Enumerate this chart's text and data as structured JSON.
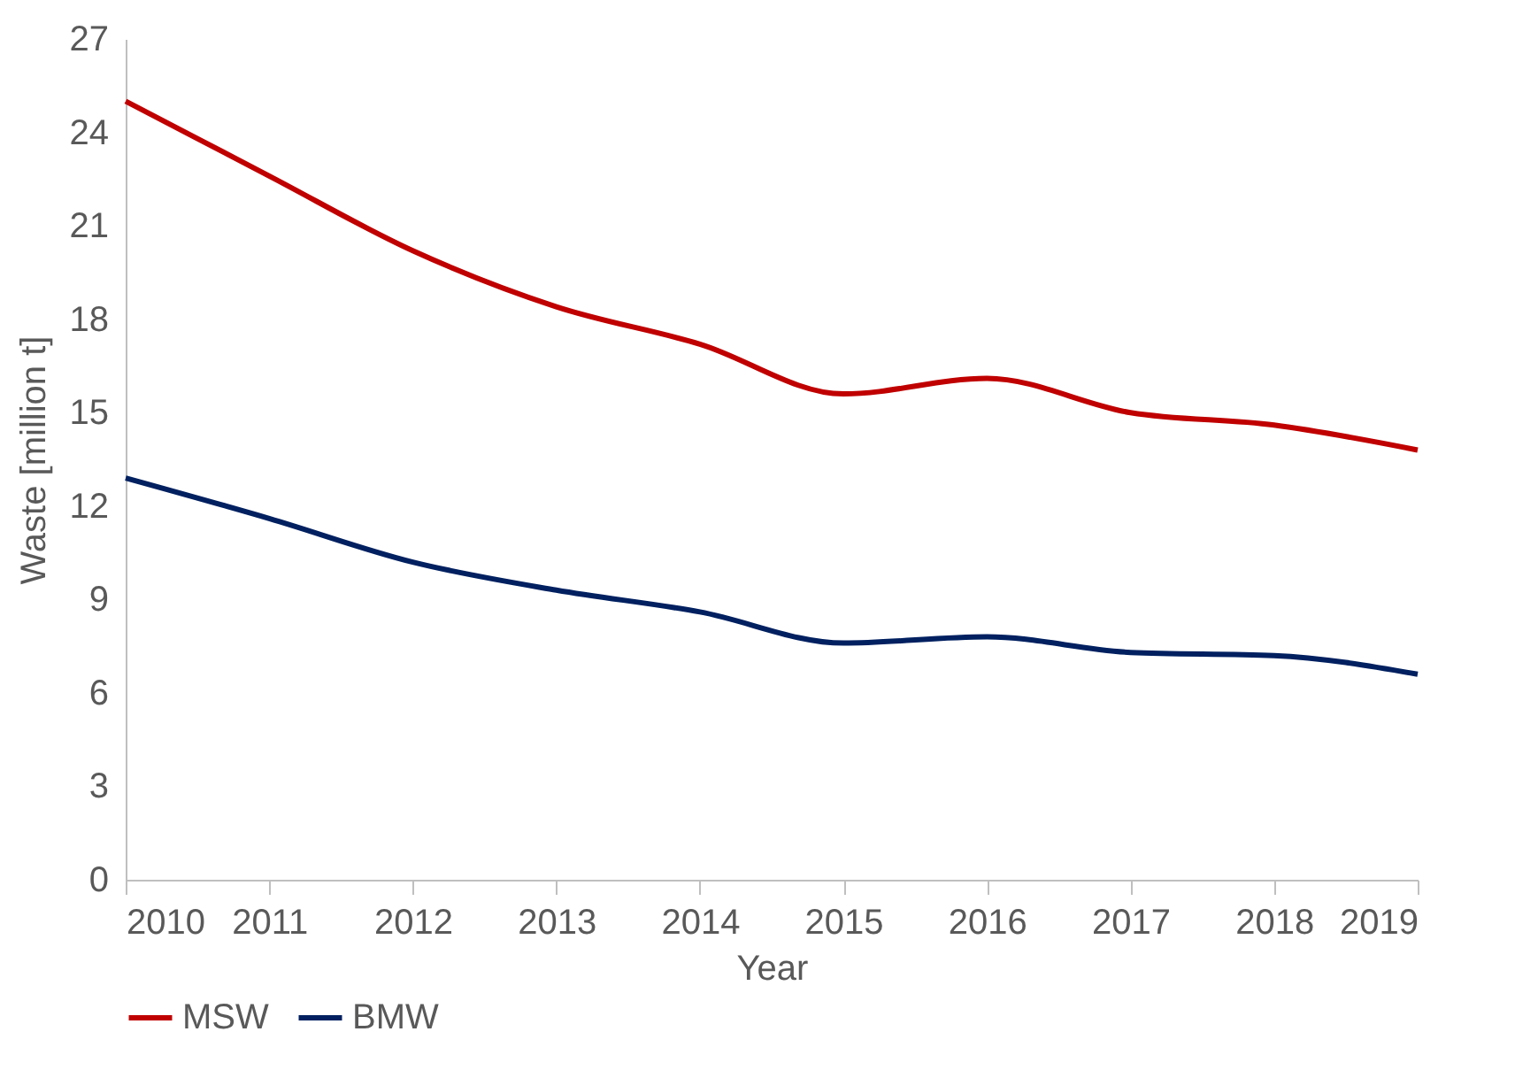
{
  "chart_data": {
    "type": "line",
    "xlabel": "Year",
    "ylabel": "Waste [million t]",
    "x": [
      2010,
      2011,
      2012,
      2013,
      2014,
      2015,
      2016,
      2017,
      2018,
      2019
    ],
    "xlim": [
      2010,
      2019
    ],
    "xticks": [
      2010,
      2011,
      2012,
      2013,
      2014,
      2015,
      2016,
      2017,
      2018,
      2019
    ],
    "ylim": [
      0,
      27
    ],
    "yticks": [
      0,
      3,
      6,
      9,
      12,
      15,
      18,
      21,
      24,
      27
    ],
    "grid": false,
    "legend": "bottom",
    "marker": "none",
    "line_style": "solid",
    "series": [
      {
        "name": "MSW",
        "color": "#c00000",
        "values": [
          25.0,
          22.6,
          20.2,
          18.4,
          17.2,
          15.6,
          16.1,
          15.0,
          14.6,
          13.8
        ]
      },
      {
        "name": "BMW",
        "color": "#002060",
        "values": [
          12.9,
          11.6,
          10.2,
          9.3,
          8.6,
          7.6,
          7.8,
          7.3,
          7.2,
          6.6
        ]
      }
    ]
  }
}
